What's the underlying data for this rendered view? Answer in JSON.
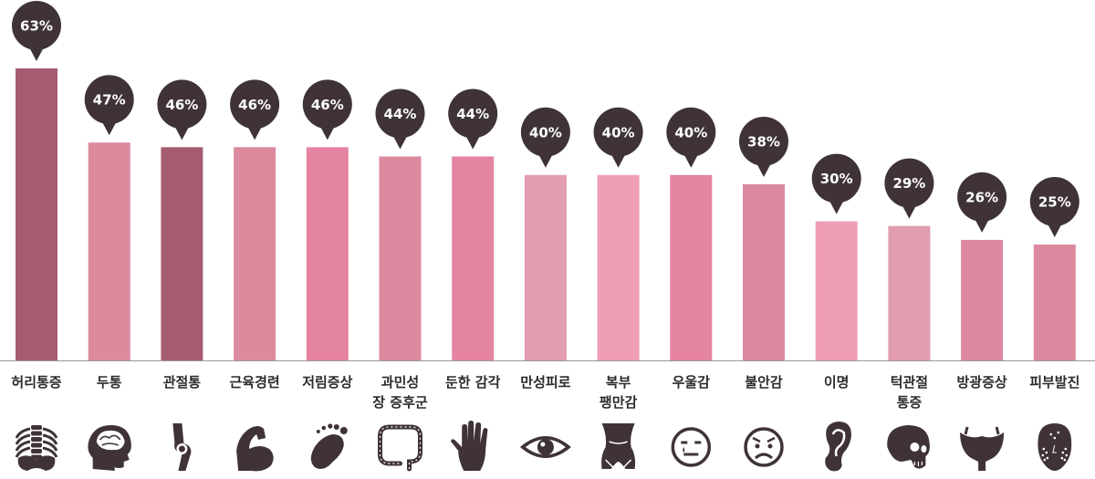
{
  "chart_data": {
    "type": "bar",
    "categories": [
      "허리통증",
      "두통",
      "관절통",
      "근육경련",
      "저림증상",
      "과민성\n장 증후군",
      "둔한 감각",
      "만성피로",
      "복부\n팽만감",
      "우울감",
      "불안감",
      "이명",
      "턱관절\n통증",
      "방광증상",
      "피부발진"
    ],
    "values": [
      63,
      47,
      46,
      46,
      46,
      44,
      44,
      40,
      40,
      40,
      38,
      30,
      29,
      26,
      25
    ],
    "value_labels": [
      "63%",
      "47%",
      "46%",
      "46%",
      "46%",
      "44%",
      "44%",
      "40%",
      "40%",
      "40%",
      "38%",
      "30%",
      "29%",
      "26%",
      "25%"
    ],
    "bar_colors": [
      "#a65c70",
      "#dd8a9f",
      "#a65c70",
      "#dd8a9f",
      "#e484a0",
      "#dc89a0",
      "#e484a0",
      "#e29db0",
      "#ef9eb4",
      "#e484a0",
      "#dc89a0",
      "#ef9eb4",
      "#e29db0",
      "#dc89a0",
      "#dc89a0"
    ],
    "icons": [
      "spine-icon",
      "brain-head-icon",
      "knee-joint-icon",
      "flexed-arm-icon",
      "foot-icon",
      "intestine-icon",
      "hand-icon",
      "eye-icon",
      "abdomen-icon",
      "sad-face-icon",
      "worried-face-icon",
      "ear-icon",
      "skull-icon",
      "bladder-icon",
      "face-rash-icon"
    ],
    "ylim": [
      0,
      70
    ],
    "grid": false,
    "legend": "none",
    "bubble_color": "#3f3337",
    "icon_color": "#3f3337",
    "axis_color": "#999999"
  }
}
